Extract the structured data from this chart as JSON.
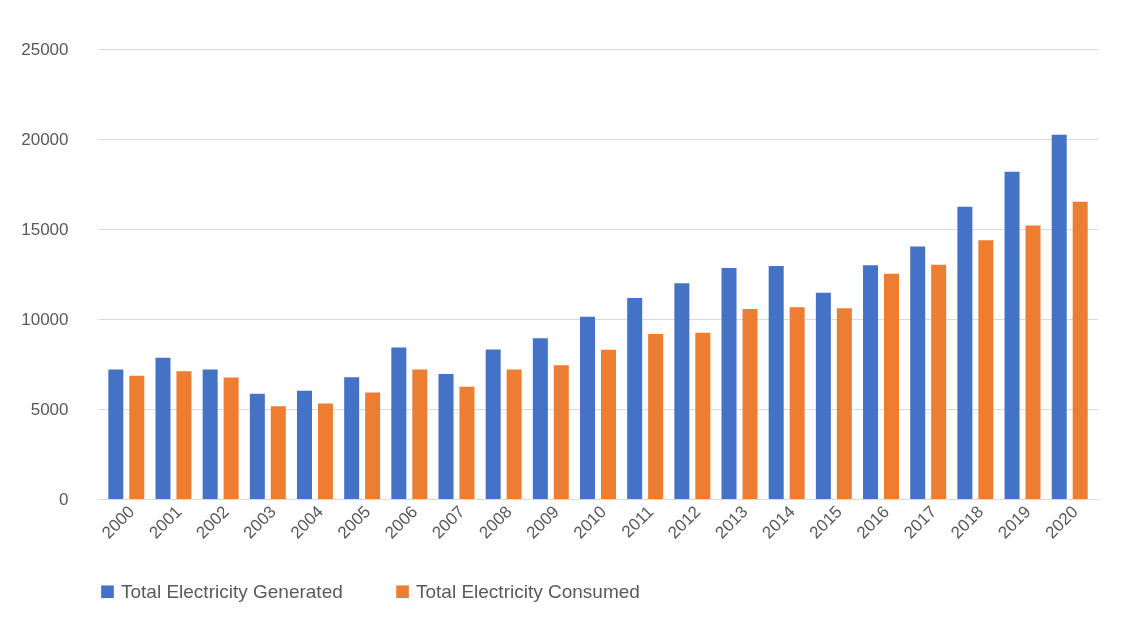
{
  "chart_data": {
    "type": "bar",
    "categories": [
      "2000",
      "2001",
      "2002",
      "2003",
      "2004",
      "2005",
      "2006",
      "2007",
      "2008",
      "2009",
      "2010",
      "2011",
      "2012",
      "2013",
      "2014",
      "2015",
      "2016",
      "2017",
      "2018",
      "2019",
      "2020"
    ],
    "series": [
      {
        "name": "Total Electricity Generated",
        "color": "#4472c4",
        "values": [
          7200,
          7850,
          7200,
          5850,
          6020,
          6760,
          8410,
          6940,
          8300,
          8930,
          10130,
          11170,
          11980,
          12840,
          12940,
          11460,
          12980,
          14030,
          16240,
          18180,
          20230
        ]
      },
      {
        "name": "Total Electricity Consumed",
        "color": "#ed7d31",
        "values": [
          6850,
          7100,
          6750,
          5150,
          5300,
          5910,
          7200,
          6240,
          7190,
          7430,
          8290,
          9160,
          9230,
          10560,
          10650,
          10600,
          12510,
          13010,
          14380,
          15200,
          16510
        ]
      }
    ],
    "ylim": [
      0,
      25000
    ],
    "yticks": [
      0,
      5000,
      10000,
      15000,
      20000,
      25000
    ],
    "grid": "y",
    "legend": "bottom"
  }
}
